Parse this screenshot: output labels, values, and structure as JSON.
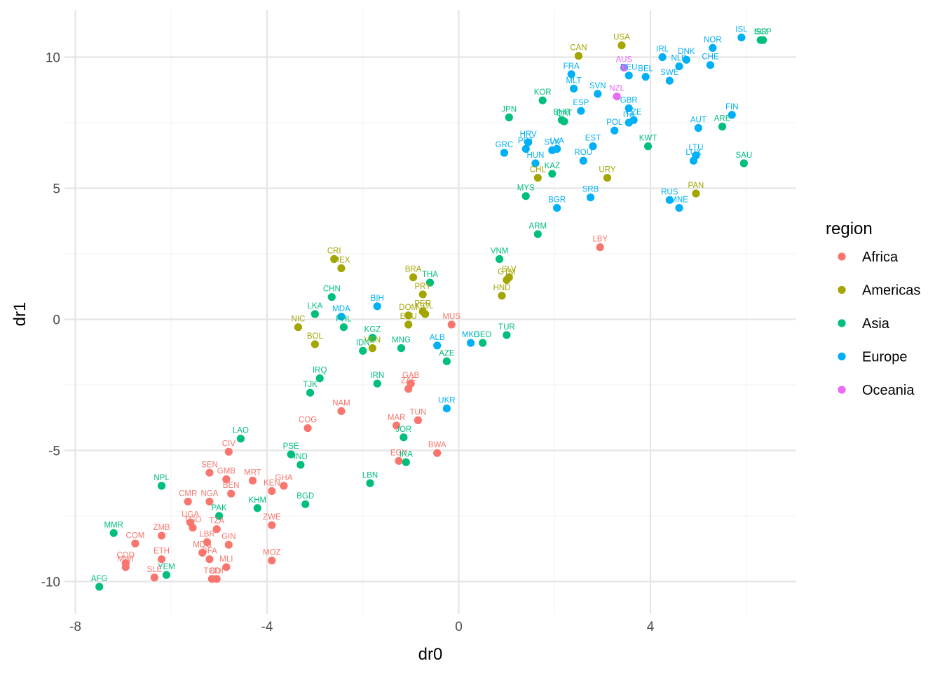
{
  "chart_data": {
    "type": "scatter",
    "xlabel": "dr0",
    "ylabel": "dr1",
    "xlim": [
      -8,
      7
    ],
    "ylim": [
      -11,
      11.6
    ],
    "x_ticks": [
      -8,
      -4,
      0,
      4
    ],
    "y_ticks": [
      -10,
      -5,
      0,
      5,
      10
    ],
    "x_tick_labels": [
      "-8",
      "-4",
      "0",
      "4"
    ],
    "y_tick_labels": [
      "-10",
      "-5",
      "0",
      "5",
      "10"
    ],
    "grid": true,
    "legend": {
      "title": "region",
      "placement": "right",
      "entries": [
        {
          "key": "Africa",
          "label": "Africa",
          "color": "#F8766D"
        },
        {
          "key": "Americas",
          "label": "Americas",
          "color": "#A3A500"
        },
        {
          "key": "Asia",
          "label": "Asia",
          "color": "#00BF7D"
        },
        {
          "key": "Europe",
          "label": "Europe",
          "color": "#00B0F6"
        },
        {
          "key": "Oceania",
          "label": "Oceania",
          "color": "#E76BF3"
        }
      ]
    },
    "points": [
      {
        "label": "ISL",
        "region": "Europe",
        "x": 5.9,
        "y": 10.75
      },
      {
        "label": "ISR",
        "region": "Asia",
        "x": 6.3,
        "y": 10.65
      },
      {
        "label": "SGP",
        "region": "Asia",
        "x": 6.35,
        "y": 10.65
      },
      {
        "label": "NOR",
        "region": "Europe",
        "x": 5.3,
        "y": 10.35
      },
      {
        "label": "USA",
        "region": "Americas",
        "x": 3.4,
        "y": 10.45
      },
      {
        "label": "CAN",
        "region": "Americas",
        "x": 2.5,
        "y": 10.05
      },
      {
        "label": "IRL",
        "region": "Europe",
        "x": 4.25,
        "y": 10.0
      },
      {
        "label": "DNK",
        "region": "Europe",
        "x": 4.75,
        "y": 9.9
      },
      {
        "label": "NLD",
        "region": "Europe",
        "x": 4.6,
        "y": 9.65
      },
      {
        "label": "CHE",
        "region": "Europe",
        "x": 5.25,
        "y": 9.7
      },
      {
        "label": "AUS",
        "region": "Oceania",
        "x": 3.45,
        "y": 9.6
      },
      {
        "label": "DEU",
        "region": "Europe",
        "x": 3.55,
        "y": 9.3
      },
      {
        "label": "BEL",
        "region": "Europe",
        "x": 3.9,
        "y": 9.25
      },
      {
        "label": "SWE",
        "region": "Europe",
        "x": 4.4,
        "y": 9.1
      },
      {
        "label": "FRA",
        "region": "Europe",
        "x": 2.35,
        "y": 9.35
      },
      {
        "label": "MLT",
        "region": "Europe",
        "x": 2.4,
        "y": 8.8
      },
      {
        "label": "SVN",
        "region": "Europe",
        "x": 2.9,
        "y": 8.6
      },
      {
        "label": "NZL",
        "region": "Oceania",
        "x": 3.3,
        "y": 8.5
      },
      {
        "label": "KOR",
        "region": "Asia",
        "x": 1.75,
        "y": 8.35
      },
      {
        "label": "GBR",
        "region": "Europe",
        "x": 3.55,
        "y": 8.05
      },
      {
        "label": "ESP",
        "region": "Europe",
        "x": 2.55,
        "y": 7.95
      },
      {
        "label": "JPN",
        "region": "Asia",
        "x": 1.05,
        "y": 7.7
      },
      {
        "label": "BHR",
        "region": "Asia",
        "x": 2.15,
        "y": 7.6
      },
      {
        "label": "QAT",
        "region": "Asia",
        "x": 2.2,
        "y": 7.55
      },
      {
        "label": "ITA",
        "region": "Europe",
        "x": 3.55,
        "y": 7.5
      },
      {
        "label": "CZE",
        "region": "Europe",
        "x": 3.65,
        "y": 7.6
      },
      {
        "label": "FIN",
        "region": "Europe",
        "x": 5.7,
        "y": 7.8
      },
      {
        "label": "ARE",
        "region": "Asia",
        "x": 5.5,
        "y": 7.35
      },
      {
        "label": "AUT",
        "region": "Europe",
        "x": 5.0,
        "y": 7.3
      },
      {
        "label": "POL",
        "region": "Europe",
        "x": 3.25,
        "y": 7.2
      },
      {
        "label": "HRV",
        "region": "Europe",
        "x": 1.45,
        "y": 6.75
      },
      {
        "label": "PRT",
        "region": "Europe",
        "x": 1.4,
        "y": 6.5
      },
      {
        "label": "SVK",
        "region": "Europe",
        "x": 1.95,
        "y": 6.45
      },
      {
        "label": "LVA",
        "region": "Europe",
        "x": 2.05,
        "y": 6.5
      },
      {
        "label": "EST",
        "region": "Europe",
        "x": 2.8,
        "y": 6.6
      },
      {
        "label": "KWT",
        "region": "Asia",
        "x": 3.95,
        "y": 6.6
      },
      {
        "label": "GRC",
        "region": "Europe",
        "x": 0.95,
        "y": 6.35
      },
      {
        "label": "LTU",
        "region": "Europe",
        "x": 4.95,
        "y": 6.25
      },
      {
        "label": "LUX",
        "region": "Europe",
        "x": 4.9,
        "y": 6.05
      },
      {
        "label": "SAU",
        "region": "Asia",
        "x": 5.95,
        "y": 5.95
      },
      {
        "label": "ROU",
        "region": "Europe",
        "x": 2.6,
        "y": 6.05
      },
      {
        "label": "HUN",
        "region": "Europe",
        "x": 1.6,
        "y": 5.95
      },
      {
        "label": "KAZ",
        "region": "Asia",
        "x": 1.95,
        "y": 5.55
      },
      {
        "label": "CHL",
        "region": "Americas",
        "x": 1.65,
        "y": 5.4
      },
      {
        "label": "URY",
        "region": "Americas",
        "x": 3.1,
        "y": 5.4
      },
      {
        "label": "PAN",
        "region": "Americas",
        "x": 4.95,
        "y": 4.8
      },
      {
        "label": "MYS",
        "region": "Asia",
        "x": 1.4,
        "y": 4.7
      },
      {
        "label": "SRB",
        "region": "Europe",
        "x": 2.75,
        "y": 4.65
      },
      {
        "label": "RUS",
        "region": "Europe",
        "x": 4.4,
        "y": 4.55
      },
      {
        "label": "MNE",
        "region": "Europe",
        "x": 4.6,
        "y": 4.25
      },
      {
        "label": "BGR",
        "region": "Europe",
        "x": 2.05,
        "y": 4.25
      },
      {
        "label": "ARM",
        "region": "Asia",
        "x": 1.65,
        "y": 3.25
      },
      {
        "label": "LBY",
        "region": "Africa",
        "x": 2.95,
        "y": 2.75
      },
      {
        "label": "CRI",
        "region": "Americas",
        "x": -2.6,
        "y": 2.3
      },
      {
        "label": "MEX",
        "region": "Americas",
        "x": -2.45,
        "y": 1.95
      },
      {
        "label": "VNM",
        "region": "Asia",
        "x": 0.85,
        "y": 2.3
      },
      {
        "label": "BRA",
        "region": "Americas",
        "x": -0.95,
        "y": 1.6
      },
      {
        "label": "THA",
        "region": "Asia",
        "x": -0.6,
        "y": 1.4
      },
      {
        "label": "SLV",
        "region": "Americas",
        "x": 1.05,
        "y": 1.6
      },
      {
        "label": "GTM",
        "region": "Americas",
        "x": 1.0,
        "y": 1.5
      },
      {
        "label": "PRY",
        "region": "Americas",
        "x": -0.75,
        "y": 0.95
      },
      {
        "label": "HND",
        "region": "Americas",
        "x": 0.9,
        "y": 0.9
      },
      {
        "label": "CHN",
        "region": "Asia",
        "x": -2.65,
        "y": 0.85
      },
      {
        "label": "BIH",
        "region": "Europe",
        "x": -1.7,
        "y": 0.5
      },
      {
        "label": "PER",
        "region": "Americas",
        "x": -0.75,
        "y": 0.3
      },
      {
        "label": "COL",
        "region": "Americas",
        "x": -0.7,
        "y": 0.2
      },
      {
        "label": "DOM",
        "region": "Americas",
        "x": -1.05,
        "y": 0.15
      },
      {
        "label": "LKA",
        "region": "Asia",
        "x": -3.0,
        "y": 0.2
      },
      {
        "label": "MDA",
        "region": "Europe",
        "x": -2.45,
        "y": 0.1
      },
      {
        "label": "ECU",
        "region": "Americas",
        "x": -1.05,
        "y": -0.2
      },
      {
        "label": "MUS",
        "region": "Africa",
        "x": -0.15,
        "y": -0.2
      },
      {
        "label": "NIC",
        "region": "Americas",
        "x": -3.35,
        "y": -0.3
      },
      {
        "label": "PHL",
        "region": "Asia",
        "x": -2.4,
        "y": -0.3
      },
      {
        "label": "KGZ",
        "region": "Asia",
        "x": -1.8,
        "y": -0.7
      },
      {
        "label": "MKD",
        "region": "Europe",
        "x": 0.25,
        "y": -0.9
      },
      {
        "label": "GEO",
        "region": "Asia",
        "x": 0.5,
        "y": -0.9
      },
      {
        "label": "TUR",
        "region": "Asia",
        "x": 1.0,
        "y": -0.6
      },
      {
        "label": "BOL",
        "region": "Americas",
        "x": -3.0,
        "y": -0.95
      },
      {
        "label": "VEN",
        "region": "Americas",
        "x": -1.8,
        "y": -1.1
      },
      {
        "label": "IDN",
        "region": "Asia",
        "x": -2.0,
        "y": -1.2
      },
      {
        "label": "MNG",
        "region": "Asia",
        "x": -1.2,
        "y": -1.1
      },
      {
        "label": "ALB",
        "region": "Europe",
        "x": -0.45,
        "y": -1.0
      },
      {
        "label": "AZE",
        "region": "Asia",
        "x": -0.25,
        "y": -1.6
      },
      {
        "label": "IRQ",
        "region": "Asia",
        "x": -2.9,
        "y": -2.25
      },
      {
        "label": "IRN",
        "region": "Asia",
        "x": -1.7,
        "y": -2.45
      },
      {
        "label": "GAB",
        "region": "Africa",
        "x": -1.0,
        "y": -2.45
      },
      {
        "label": "ZAF",
        "region": "Africa",
        "x": -1.05,
        "y": -2.65
      },
      {
        "label": "TJK",
        "region": "Asia",
        "x": -3.1,
        "y": -2.8
      },
      {
        "label": "NAM",
        "region": "Africa",
        "x": -2.45,
        "y": -3.5
      },
      {
        "label": "UKR",
        "region": "Europe",
        "x": -0.25,
        "y": -3.4
      },
      {
        "label": "TUN",
        "region": "Africa",
        "x": -0.85,
        "y": -3.85
      },
      {
        "label": "MAR",
        "region": "Africa",
        "x": -1.3,
        "y": -4.05
      },
      {
        "label": "COG",
        "region": "Africa",
        "x": -3.15,
        "y": -4.15
      },
      {
        "label": "JOR",
        "region": "Asia",
        "x": -1.15,
        "y": -4.5
      },
      {
        "label": "LAO",
        "region": "Asia",
        "x": -4.55,
        "y": -4.55
      },
      {
        "label": "CIV",
        "region": "Africa",
        "x": -4.8,
        "y": -5.05
      },
      {
        "label": "PSE",
        "region": "Asia",
        "x": -3.5,
        "y": -5.15
      },
      {
        "label": "BWA",
        "region": "Africa",
        "x": -0.45,
        "y": -5.1
      },
      {
        "label": "EGY",
        "region": "Africa",
        "x": -1.25,
        "y": -5.4
      },
      {
        "label": "IRA",
        "region": "Asia",
        "x": -1.1,
        "y": -5.45
      },
      {
        "label": "IND",
        "region": "Asia",
        "x": -3.3,
        "y": -5.55
      },
      {
        "label": "SEN",
        "region": "Africa",
        "x": -5.2,
        "y": -5.85
      },
      {
        "label": "GMB",
        "region": "Africa",
        "x": -4.85,
        "y": -6.1
      },
      {
        "label": "MRT",
        "region": "Africa",
        "x": -4.3,
        "y": -6.15
      },
      {
        "label": "LBN",
        "region": "Asia",
        "x": -1.85,
        "y": -6.25
      },
      {
        "label": "GHA",
        "region": "Africa",
        "x": -3.65,
        "y": -6.35
      },
      {
        "label": "KEN",
        "region": "Africa",
        "x": -3.9,
        "y": -6.55
      },
      {
        "label": "NPL",
        "region": "Asia",
        "x": -6.2,
        "y": -6.35
      },
      {
        "label": "BEN",
        "region": "Africa",
        "x": -4.75,
        "y": -6.65
      },
      {
        "label": "CMR",
        "region": "Africa",
        "x": -5.65,
        "y": -6.95
      },
      {
        "label": "NGA",
        "region": "Africa",
        "x": -5.2,
        "y": -6.95
      },
      {
        "label": "BGD",
        "region": "Asia",
        "x": -3.2,
        "y": -7.05
      },
      {
        "label": "KHM",
        "region": "Asia",
        "x": -4.2,
        "y": -7.2
      },
      {
        "label": "PAK",
        "region": "Asia",
        "x": -5.0,
        "y": -7.5
      },
      {
        "label": "UGA",
        "region": "Africa",
        "x": -5.6,
        "y": -7.75
      },
      {
        "label": "TGO",
        "region": "Africa",
        "x": -5.55,
        "y": -7.95
      },
      {
        "label": "TZA",
        "region": "Africa",
        "x": -5.05,
        "y": -8.0
      },
      {
        "label": "ZWE",
        "region": "Africa",
        "x": -3.9,
        "y": -7.85
      },
      {
        "label": "MMR",
        "region": "Asia",
        "x": -7.2,
        "y": -8.15
      },
      {
        "label": "ZMB",
        "region": "Africa",
        "x": -6.2,
        "y": -8.25
      },
      {
        "label": "COM",
        "region": "Africa",
        "x": -6.75,
        "y": -8.55
      },
      {
        "label": "LBR",
        "region": "Africa",
        "x": -5.25,
        "y": -8.5
      },
      {
        "label": "GIN",
        "region": "Africa",
        "x": -4.8,
        "y": -8.6
      },
      {
        "label": "MDG",
        "region": "Africa",
        "x": -5.35,
        "y": -8.9
      },
      {
        "label": "ETH",
        "region": "Africa",
        "x": -6.2,
        "y": -9.15
      },
      {
        "label": "BFA",
        "region": "Africa",
        "x": -5.2,
        "y": -9.15
      },
      {
        "label": "COD",
        "region": "Africa",
        "x": -6.95,
        "y": -9.3
      },
      {
        "label": "MWI",
        "region": "Africa",
        "x": -6.95,
        "y": -9.45
      },
      {
        "label": "MLI",
        "region": "Africa",
        "x": -4.85,
        "y": -9.45
      },
      {
        "label": "MOZ",
        "region": "Africa",
        "x": -3.9,
        "y": -9.2
      },
      {
        "label": "SLE",
        "region": "Africa",
        "x": -6.35,
        "y": -9.85
      },
      {
        "label": "YEM",
        "region": "Asia",
        "x": -6.1,
        "y": -9.75
      },
      {
        "label": "TCD",
        "region": "Africa",
        "x": -5.15,
        "y": -9.9
      },
      {
        "label": "BDI",
        "region": "Africa",
        "x": -5.05,
        "y": -9.9
      },
      {
        "label": "AFG",
        "region": "Asia",
        "x": -7.5,
        "y": -10.2
      }
    ]
  }
}
